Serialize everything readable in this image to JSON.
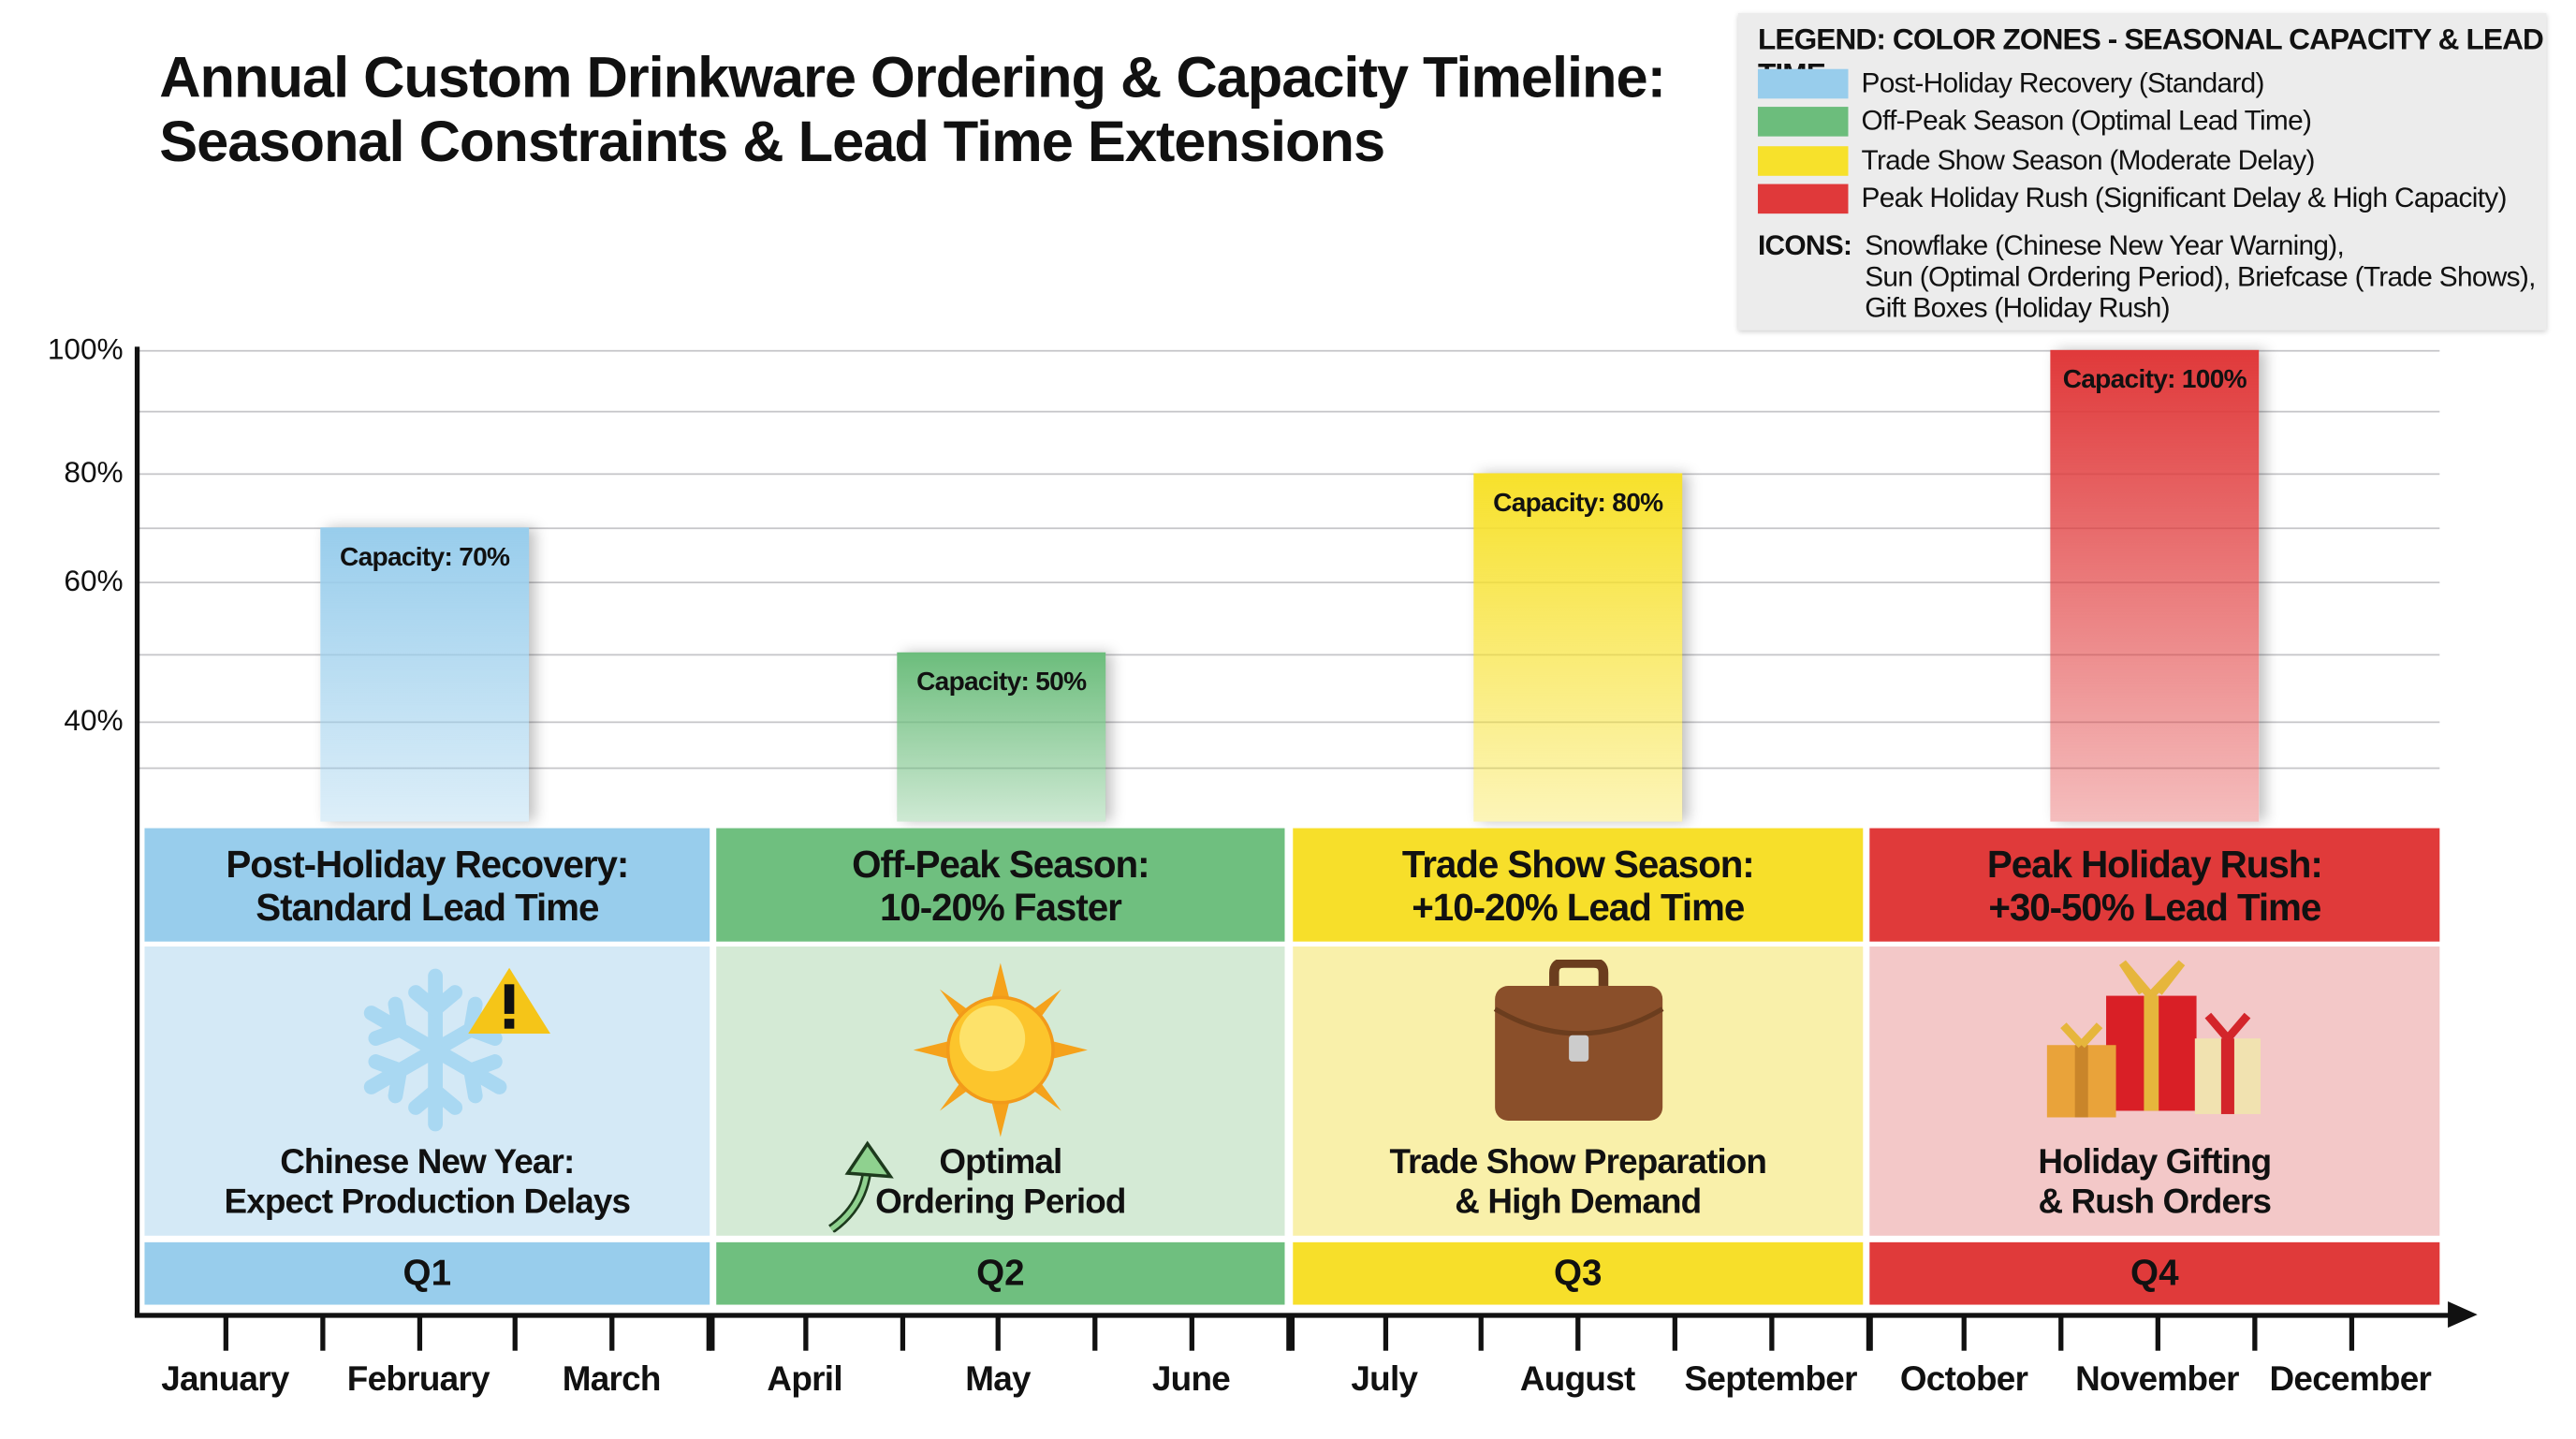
{
  "title": {
    "line1": "Annual Custom Drinkware Ordering & Capacity Timeline:",
    "line2": "Seasonal Constraints & Lead Time Extensions"
  },
  "legend": {
    "title": "LEGEND: COLOR ZONES - SEASONAL CAPACITY & LEAD TIME",
    "items": [
      {
        "label": "Post-Holiday Recovery (Standard)",
        "color": "#98cdec"
      },
      {
        "label": "Off-Peak Season (Optimal Lead Time)",
        "color": "#6cbd7c"
      },
      {
        "label": "Trade Show Season (Moderate Delay)",
        "color": "#f7e12b"
      },
      {
        "label": "Peak Holiday Rush (Significant Delay & High Capacity)",
        "color": "#e0393a"
      }
    ],
    "icons_label": "ICONS:",
    "icons_lines": [
      "Snowflake (Chinese New Year Warning),",
      "Sun (Optimal Ordering Period), Briefcase (Trade Shows),",
      "Gift Boxes (Holiday Rush)"
    ]
  },
  "chart_data": {
    "type": "bar",
    "title": "Annual Custom Drinkware Ordering & Capacity Timeline: Seasonal Constraints & Lead Time Extensions",
    "categories": [
      "Q1",
      "Q2",
      "Q3",
      "Q4"
    ],
    "values": [
      70,
      50,
      80,
      100
    ],
    "data_labels": [
      "Capacity: 70%",
      "Capacity: 50%",
      "Capacity: 80%",
      "Capacity: 100%"
    ],
    "colors": [
      "#98cdec",
      "#6cbd7c",
      "#f7e12b",
      "#e0393a"
    ],
    "y_ticks": [
      "40%",
      "60%",
      "80%",
      "100%"
    ],
    "y_tick_values": [
      40,
      60,
      80,
      100
    ],
    "ylim_top": 100,
    "grid": true,
    "legend_position": "top-right",
    "x_tick_labels": [
      "January",
      "February",
      "March",
      "April",
      "May",
      "June",
      "July",
      "August",
      "September",
      "October",
      "November",
      "December"
    ]
  },
  "zones": [
    {
      "header": [
        "Post-Holiday Recovery:",
        "Standard Lead Time"
      ],
      "text": [
        "Chinese New Year:",
        "Expect Production Delays"
      ],
      "quarter": "Q1",
      "icon": "snowflake-warning",
      "head": "#98cdec",
      "body": "#d4e9f6"
    },
    {
      "header": [
        "Off-Peak Season:",
        "10-20% Faster"
      ],
      "text": [
        "Optimal",
        "Ordering Period"
      ],
      "quarter": "Q2",
      "icon": "sun",
      "head": "#6fbf7f",
      "body": "#d4ead5"
    },
    {
      "header": [
        "Trade Show Season:",
        "+10-20% Lead Time"
      ],
      "text": [
        "Trade Show Preparation",
        "& High Demand"
      ],
      "quarter": "Q3",
      "icon": "briefcase",
      "head": "#f7df2a",
      "body": "#f9f0aa"
    },
    {
      "header": [
        "Peak Holiday Rush:",
        "+30-50% Lead Time"
      ],
      "text": [
        "Holiday Gifting",
        "& Rush Orders"
      ],
      "quarter": "Q4",
      "icon": "gift-boxes",
      "head": "#e03a3a",
      "body": "#f3c8c8"
    }
  ]
}
